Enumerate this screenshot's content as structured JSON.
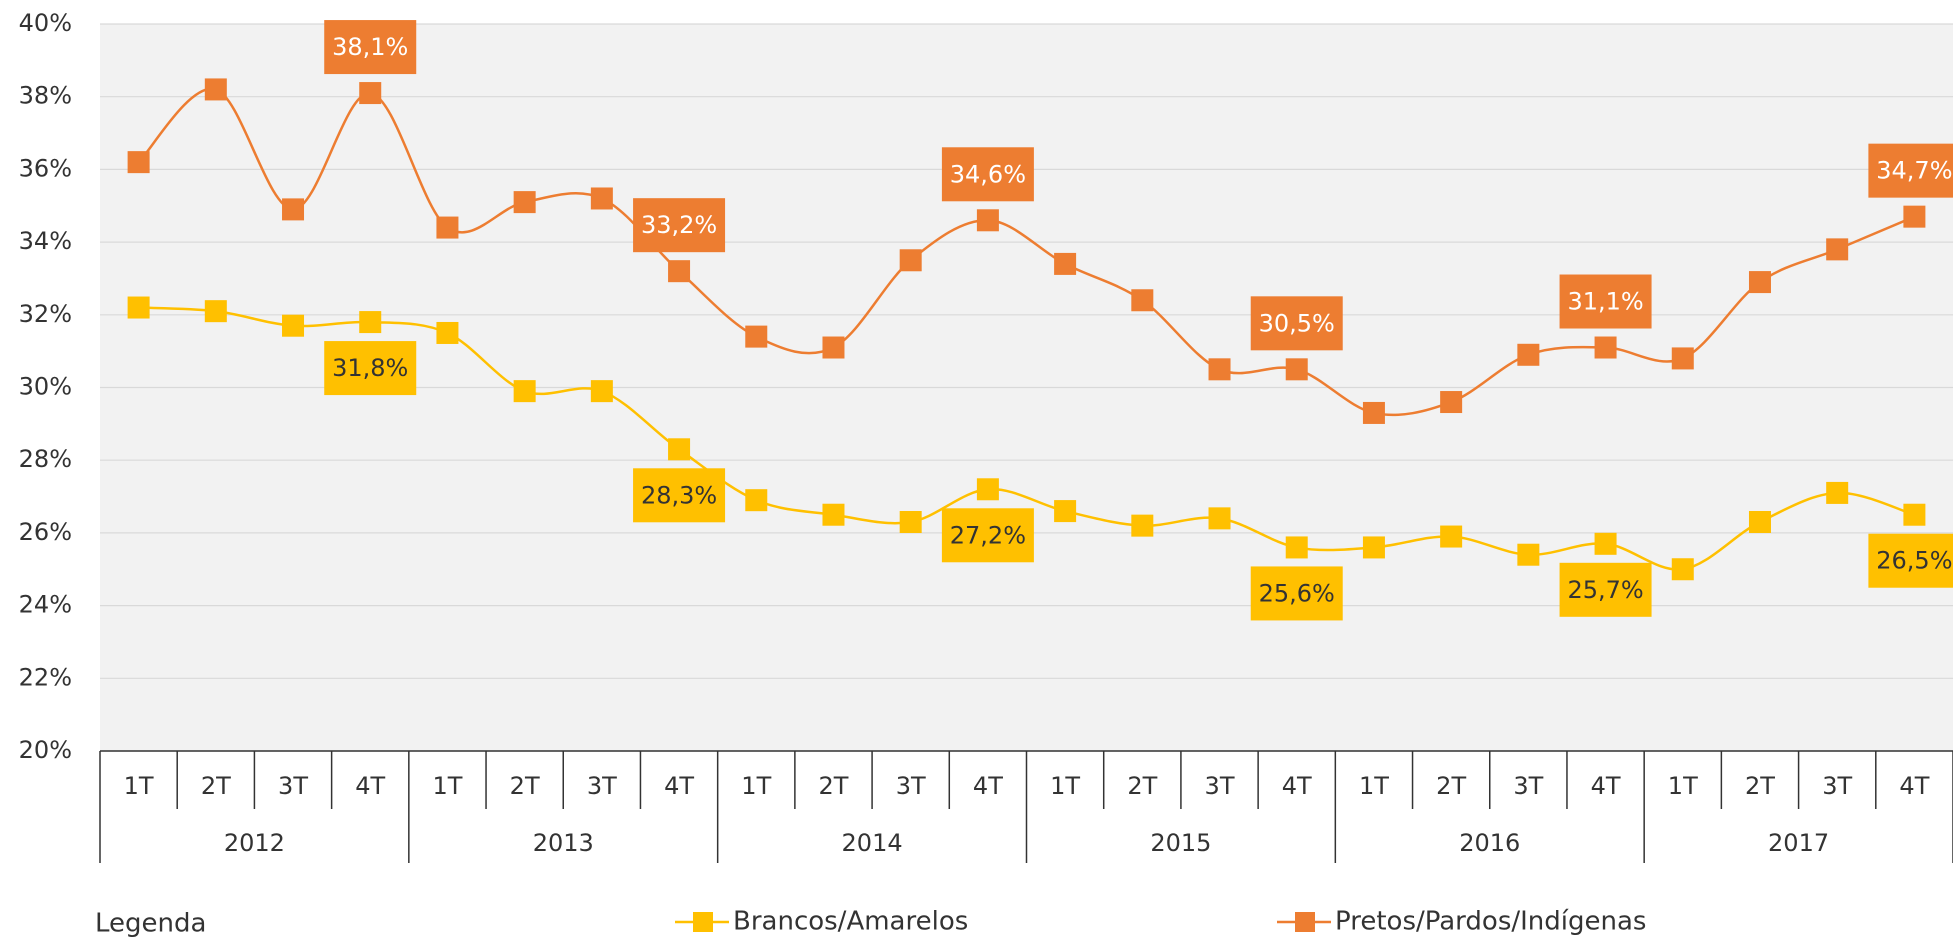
{
  "chart_data": {
    "type": "line",
    "categories": [
      "1T",
      "2T",
      "3T",
      "4T",
      "1T",
      "2T",
      "3T",
      "4T",
      "1T",
      "2T",
      "3T",
      "4T",
      "1T",
      "2T",
      "3T",
      "4T",
      "1T",
      "2T",
      "3T",
      "4T",
      "1T",
      "2T",
      "3T",
      "4T"
    ],
    "years": [
      "2012",
      "2013",
      "2014",
      "2015",
      "2016",
      "2017"
    ],
    "ylim": [
      20,
      40
    ],
    "yticks": [
      {
        "value": 20,
        "label": "20%"
      },
      {
        "value": 22,
        "label": "22%"
      },
      {
        "value": 24,
        "label": "24%"
      },
      {
        "value": 26,
        "label": "26%"
      },
      {
        "value": 28,
        "label": "28%"
      },
      {
        "value": 30,
        "label": "30%"
      },
      {
        "value": 32,
        "label": "32%"
      },
      {
        "value": 34,
        "label": "34%"
      },
      {
        "value": 36,
        "label": "36%"
      },
      {
        "value": 38,
        "label": "38%"
      },
      {
        "value": 40,
        "label": "40%"
      }
    ],
    "grid": true,
    "smooth": true,
    "legend_title": "Legenda",
    "series": [
      {
        "name": "Brancos/Amarelos",
        "color": "#ffc000",
        "values": [
          32.2,
          32.1,
          31.7,
          31.8,
          31.5,
          29.9,
          29.9,
          28.3,
          26.9,
          26.5,
          26.3,
          27.2,
          26.6,
          26.2,
          26.4,
          25.6,
          25.6,
          25.9,
          25.4,
          25.7,
          25.0,
          26.3,
          27.1,
          26.5
        ],
        "value_labels": [
          null,
          null,
          null,
          "31,8%",
          null,
          null,
          null,
          "28,3%",
          null,
          null,
          null,
          "27,2%",
          null,
          null,
          null,
          "25,6%",
          null,
          null,
          null,
          "25,7%",
          null,
          null,
          null,
          "26,5%"
        ]
      },
      {
        "name": "Pretos/Pardos/Indígenas",
        "color": "#ed7d31",
        "values": [
          36.2,
          38.2,
          34.9,
          38.1,
          34.4,
          35.1,
          35.2,
          33.2,
          31.4,
          31.1,
          33.5,
          34.6,
          33.4,
          32.4,
          30.5,
          30.5,
          29.3,
          29.6,
          30.9,
          31.1,
          30.8,
          32.9,
          33.8,
          34.7
        ],
        "value_labels": [
          null,
          null,
          null,
          "38,1%",
          null,
          null,
          null,
          "33,2%",
          null,
          null,
          null,
          "34,6%",
          null,
          null,
          null,
          "30,5%",
          null,
          null,
          null,
          "31,1%",
          null,
          null,
          null,
          "34,7%"
        ]
      }
    ]
  }
}
